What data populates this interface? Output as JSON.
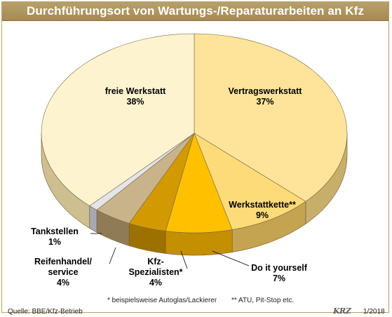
{
  "chart_data": {
    "type": "pie",
    "title": "Durchführungsort von Wartungs-/Reparaturarbeiten an Kfz",
    "slices": [
      {
        "label": "Vertragswerkstatt",
        "value": 37,
        "value_label": "37%",
        "color": "#fde49a",
        "side_color": "#c7ae6a"
      },
      {
        "label": "Werkstattkette**",
        "value": 9,
        "value_label": "9%",
        "color": "#fddb78",
        "side_color": "#c4a450"
      },
      {
        "label": "Do it yourself",
        "value": 7,
        "value_label": "7%",
        "color": "#ffc000",
        "side_color": "#c48f00"
      },
      {
        "label": "Kfz-Spezialisten*",
        "label_lines": [
          "Kfz-",
          "Spezialisten*"
        ],
        "value": 4,
        "value_label": "4%",
        "color": "#d29a00",
        "side_color": "#9c7100"
      },
      {
        "label": "Reifenhandel/service",
        "label_lines": [
          "Reifenhandel/",
          "service"
        ],
        "value": 4,
        "value_label": "4%",
        "color": "#c9b38a",
        "side_color": "#8f7b56"
      },
      {
        "label": "Tankstellen",
        "value": 1,
        "value_label": "1%",
        "color": "#e4e4ea",
        "side_color": "#a8a8b0"
      },
      {
        "label": "freie Werkstatt",
        "value": 38,
        "value_label": "38%",
        "color": "#fdf3cf",
        "side_color": "#cdbf8f"
      }
    ]
  },
  "footnotes": {
    "note1": "* beispielsweise Autoglas/Lackierer",
    "note2": "** ATU, Pit-Stop etc."
  },
  "source": "Quelle: BBE/Kfz-Betrieb",
  "logo_text": "KRZ",
  "issue": "1/2018"
}
